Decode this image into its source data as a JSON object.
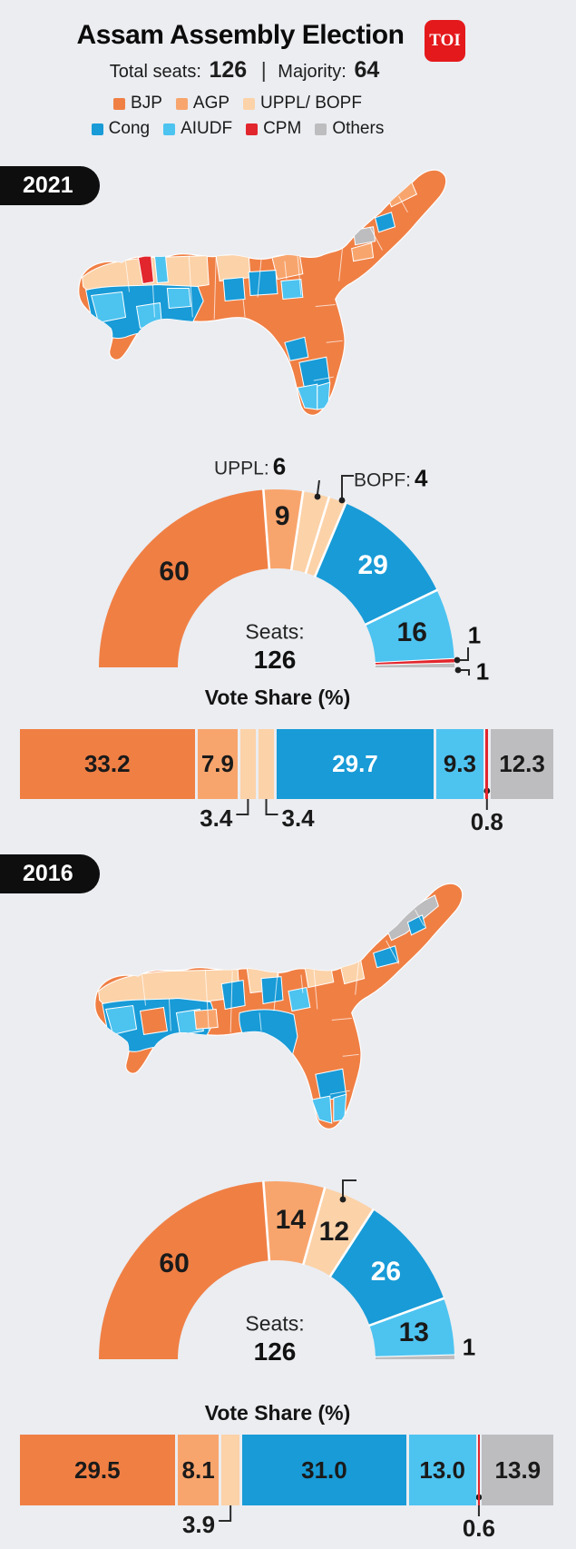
{
  "header": {
    "title": "Assam Assembly Election",
    "logo_text": "TOI",
    "subtitle": {
      "total_label": "Total seats:",
      "total_value": "126",
      "separator": "|",
      "majority_label": "Majority:",
      "majority_value": "64"
    }
  },
  "legend": {
    "items": [
      {
        "party": "BJP",
        "label": "BJP"
      },
      {
        "party": "AGP",
        "label": "AGP"
      },
      {
        "party": "UPPL",
        "label": "UPPL/ BOPF"
      },
      {
        "party": "Cong",
        "label": "Cong"
      },
      {
        "party": "AIUDF",
        "label": "AIUDF"
      },
      {
        "party": "CPM",
        "label": "CPM"
      },
      {
        "party": "Others",
        "label": "Others"
      }
    ],
    "row_split": 3
  },
  "colors": {
    "BJP": "#f07f44",
    "AGP": "#f8a56d",
    "UPPL": "#fcd2a8",
    "Cong": "#189bd7",
    "AIUDF": "#4dc3f0",
    "CPM": "#e2262d",
    "Others": "#bdbdbf",
    "background": "#ebedf1",
    "pill": "#0e0e0e",
    "toi_red": "#e4191c",
    "callout_line": "#2b2b2b",
    "text_dark": "#1a1a1a"
  },
  "year_tags": [
    "2021",
    "2016"
  ],
  "maps": [
    {
      "year": "2021",
      "description": "Assam constituency map coloured by winning party, 2021"
    },
    {
      "year": "2016",
      "description": "Assam constituency map coloured by winning party, 2016"
    }
  ],
  "chart_data": [
    {
      "id": "seats-2021",
      "type": "donut",
      "year": "2021",
      "total": 126,
      "center_label": "Seats:",
      "center_value": "126",
      "categories": [
        "BJP",
        "AGP",
        "UPPL",
        "BOPF",
        "Cong",
        "AIUDF",
        "CPM",
        "Others"
      ],
      "values": [
        60,
        9,
        6,
        4,
        29,
        16,
        1,
        1
      ],
      "slices": [
        {
          "party": "BJP",
          "value": 60,
          "label": "60",
          "label_pos": "inside"
        },
        {
          "party": "AGP",
          "value": 9,
          "label": "9",
          "label_pos": "inside",
          "label_r": 166
        },
        {
          "party": "UPPL",
          "value": 6,
          "label_pos": "callout",
          "callout_label": "UPPL:",
          "callout_value": "6"
        },
        {
          "party": "UPPL",
          "value": 4,
          "label_pos": "callout",
          "callout_label": "BOPF:",
          "callout_value": "4"
        },
        {
          "party": "Cong",
          "value": 29,
          "label": "29",
          "label_pos": "inside",
          "label_color": "#ffffff"
        },
        {
          "party": "AIUDF",
          "value": 16,
          "label": "16",
          "label_pos": "inside"
        },
        {
          "party": "CPM",
          "value": 1,
          "label_pos": "callout",
          "callout_value": "1"
        },
        {
          "party": "Others",
          "value": 1,
          "label_pos": "callout",
          "callout_value": "1"
        }
      ]
    },
    {
      "id": "vote-2021",
      "type": "bar",
      "stacked": true,
      "year": "2021",
      "title": "Vote Share (%)",
      "categories": [
        "BJP",
        "AGP",
        "UPPL",
        "BOPF",
        "Cong",
        "AIUDF",
        "CPM",
        "Others"
      ],
      "values": [
        33.2,
        7.9,
        3.4,
        3.4,
        29.7,
        9.3,
        0.8,
        12.3
      ],
      "segments": [
        {
          "party": "BJP",
          "value": 33.2,
          "label": "33.2",
          "label_pos": "inside"
        },
        {
          "party": "AGP",
          "value": 7.9,
          "label": "7.9",
          "label_pos": "inside"
        },
        {
          "party": "UPPL",
          "value": 3.4,
          "label": "3.4",
          "label_pos": "below-left"
        },
        {
          "party": "UPPL",
          "value": 3.4,
          "label": "3.4",
          "label_pos": "below-right"
        },
        {
          "party": "Cong",
          "value": 29.7,
          "label": "29.7",
          "label_pos": "inside",
          "label_color": "#ffffff"
        },
        {
          "party": "AIUDF",
          "value": 9.3,
          "label": "9.3",
          "label_pos": "inside"
        },
        {
          "party": "CPM",
          "value": 0.8,
          "label": "0.8",
          "label_pos": "below-center"
        },
        {
          "party": "Others",
          "value": 12.3,
          "label": "12.3",
          "label_pos": "inside"
        }
      ]
    },
    {
      "id": "seats-2016",
      "type": "donut",
      "year": "2016",
      "total": 126,
      "center_label": "Seats:",
      "center_value": "126",
      "categories": [
        "BJP",
        "AGP",
        "UPPL/BOPF",
        "Cong",
        "AIUDF",
        "Others"
      ],
      "values": [
        60,
        14,
        12,
        26,
        13,
        1
      ],
      "slices": [
        {
          "party": "BJP",
          "value": 60,
          "label": "60",
          "label_pos": "inside"
        },
        {
          "party": "AGP",
          "value": 14,
          "label": "14",
          "label_pos": "inside"
        },
        {
          "party": "UPPL",
          "value": 12,
          "label": "12",
          "label_pos": "inside"
        },
        {
          "party": "Cong",
          "value": 26,
          "label": "26",
          "label_pos": "inside",
          "label_color": "#ffffff"
        },
        {
          "party": "AIUDF",
          "value": 13,
          "label": "13",
          "label_pos": "inside"
        },
        {
          "party": "Others",
          "value": 1,
          "label_pos": "callout",
          "callout_value": "1"
        }
      ]
    },
    {
      "id": "vote-2016",
      "type": "bar",
      "stacked": true,
      "year": "2016",
      "title": "Vote Share (%)",
      "categories": [
        "BJP",
        "AGP",
        "UPPL/BOPF",
        "Cong",
        "AIUDF",
        "CPM",
        "Others"
      ],
      "values": [
        29.5,
        8.1,
        3.9,
        31.0,
        13.0,
        0.6,
        13.9
      ],
      "segments": [
        {
          "party": "BJP",
          "value": 29.5,
          "label": "29.5",
          "label_pos": "inside"
        },
        {
          "party": "AGP",
          "value": 8.1,
          "label": "8.1",
          "label_pos": "inside"
        },
        {
          "party": "UPPL",
          "value": 3.9,
          "label": "3.9",
          "label_pos": "below-left"
        },
        {
          "party": "Cong",
          "value": 31.0,
          "label": "31.0",
          "label_pos": "inside"
        },
        {
          "party": "AIUDF",
          "value": 13.0,
          "label": "13.0",
          "label_pos": "inside"
        },
        {
          "party": "CPM",
          "value": 0.6,
          "label": "0.6",
          "label_pos": "below-center"
        },
        {
          "party": "Others",
          "value": 13.9,
          "label": "13.9",
          "label_pos": "inside"
        }
      ]
    }
  ]
}
